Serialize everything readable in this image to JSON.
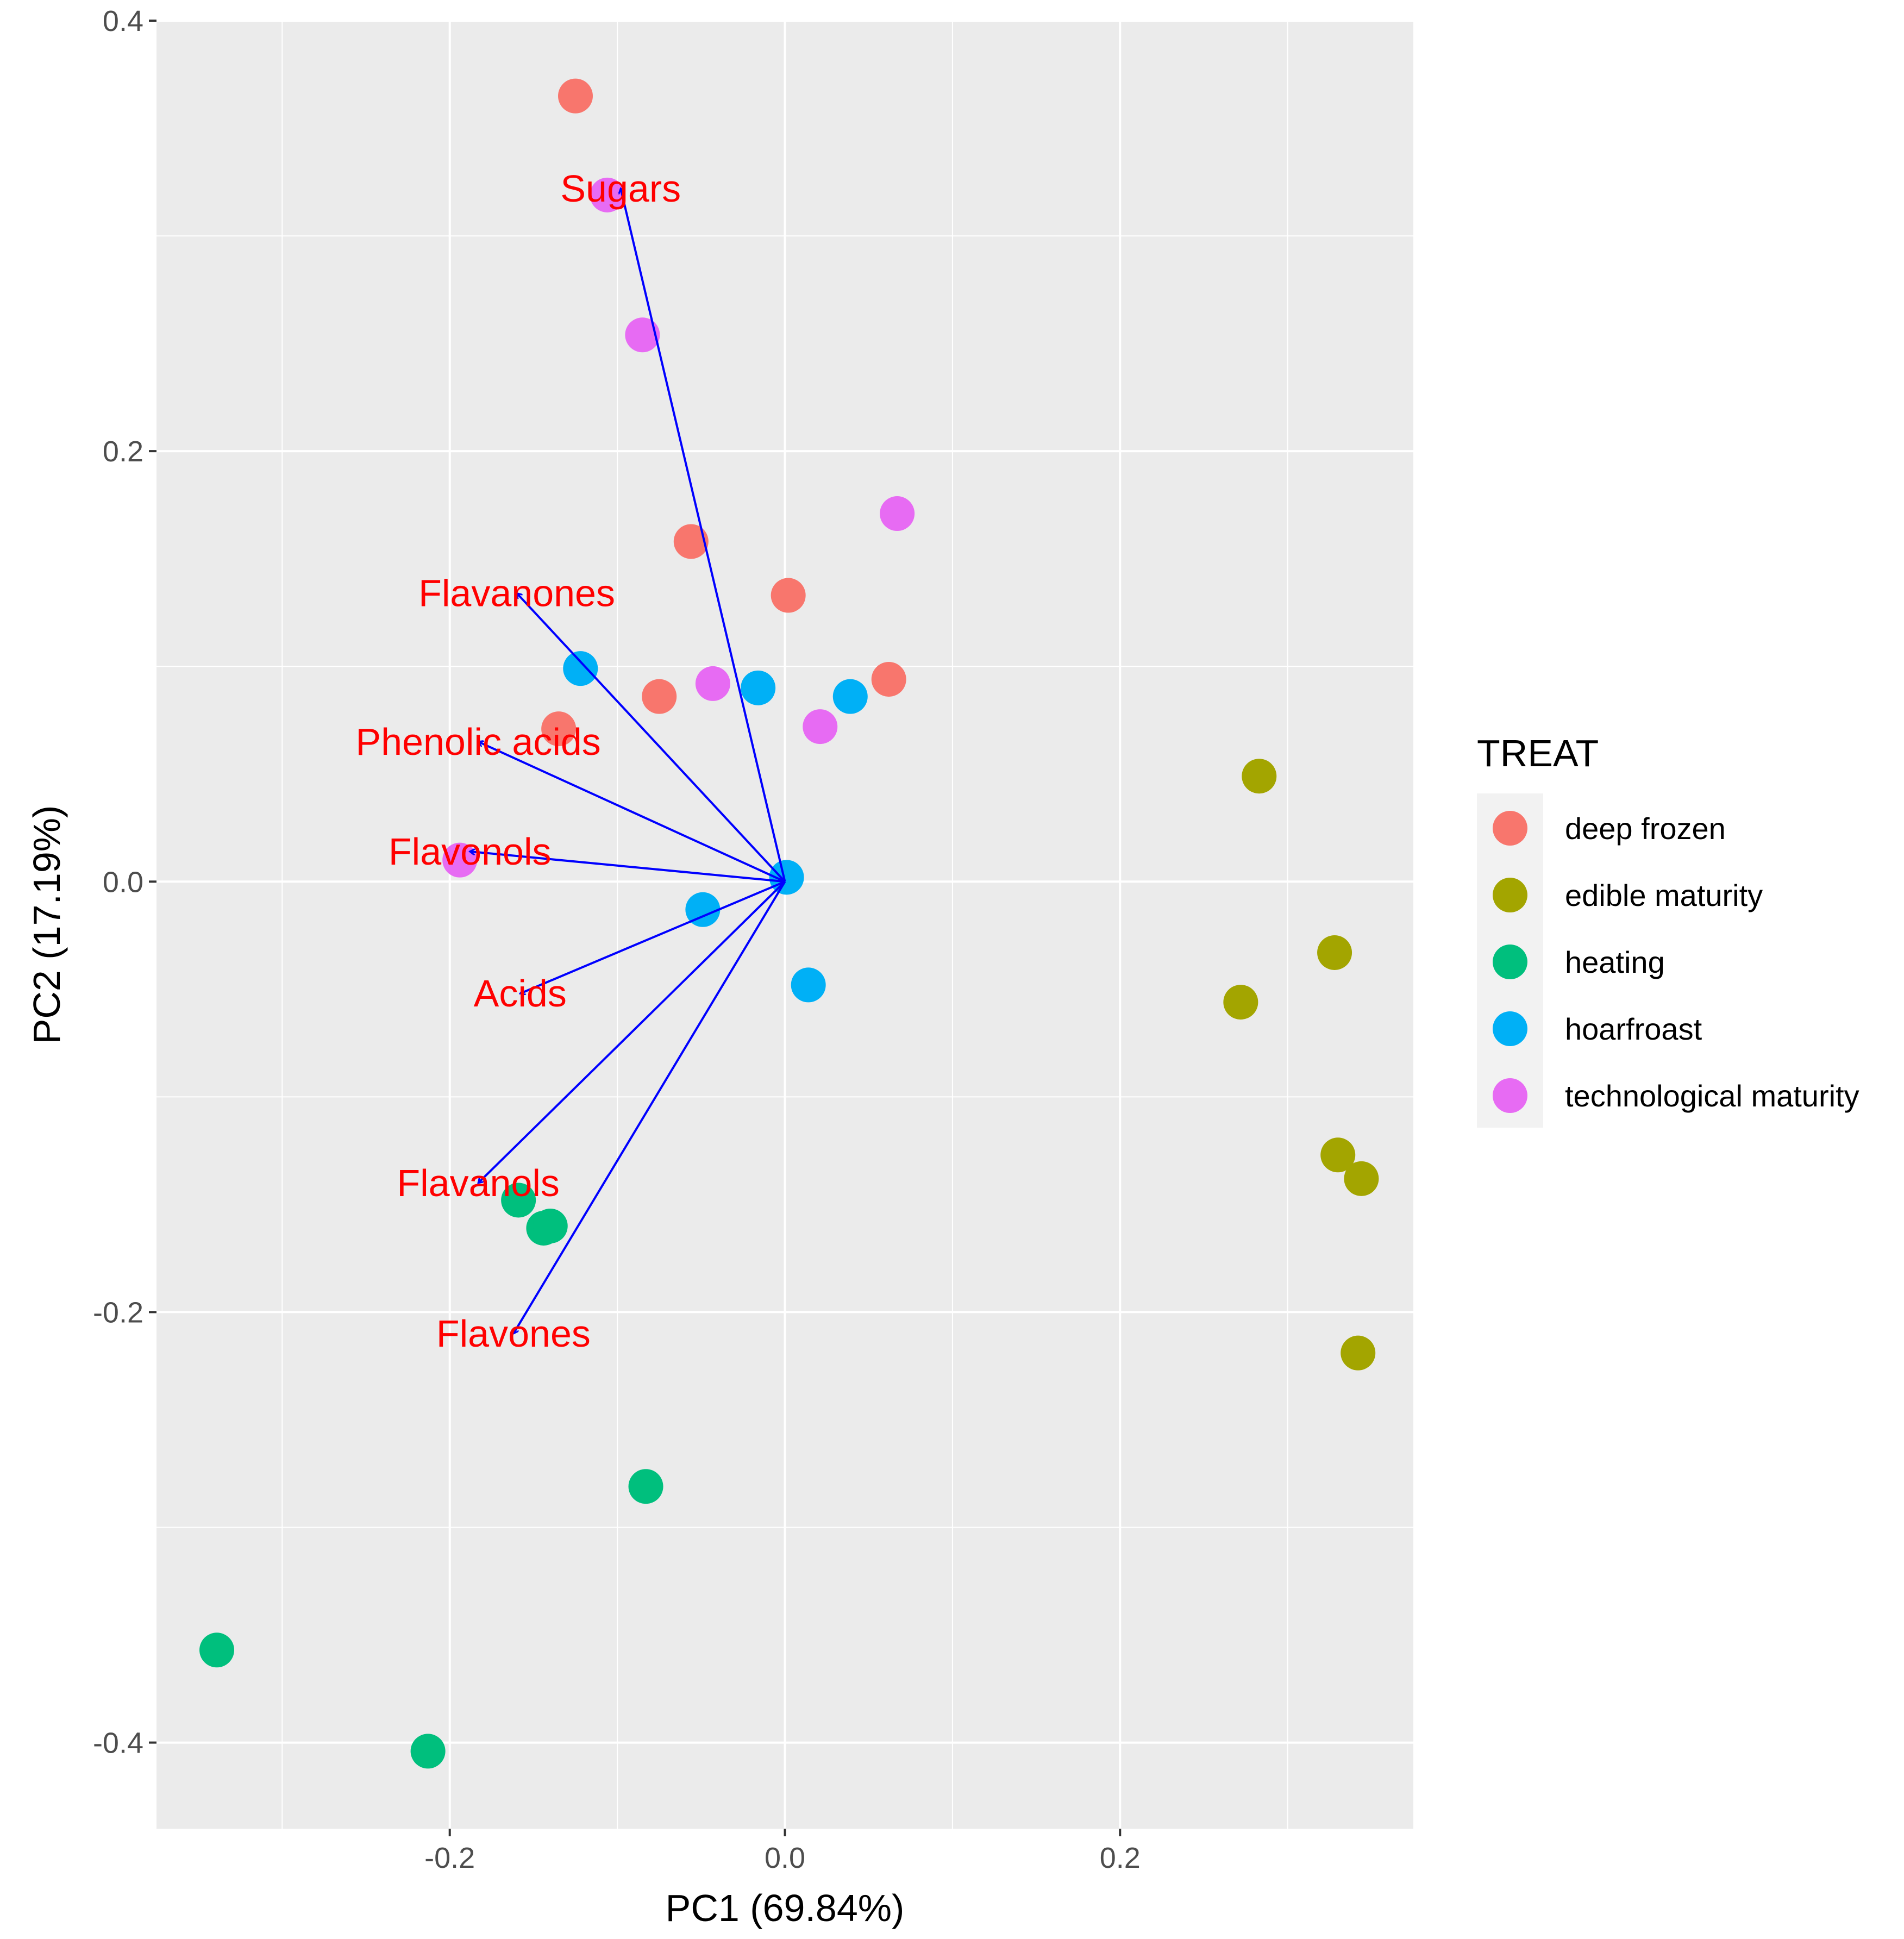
{
  "chart_data": {
    "type": "scatter",
    "subtype": "pca-biplot",
    "title": "",
    "xlabel": "PC1 (69.84%)",
    "ylabel": "PC2 (17.19%)",
    "xlim": [
      -0.375,
      0.375
    ],
    "ylim": [
      -0.44,
      0.4
    ],
    "x_ticks": [
      -0.2,
      0.0,
      0.2
    ],
    "x_tick_labels": [
      "-0.2",
      "0.0",
      "0.2"
    ],
    "y_ticks": [
      0.4,
      0.2,
      0.0,
      -0.2,
      -0.4
    ],
    "y_tick_labels": [
      "0.4",
      "0.2",
      "0.0",
      "-0.2",
      "-0.4"
    ],
    "grid": true,
    "legend": {
      "title": "TREAT",
      "position": "right",
      "entries": [
        "deep frozen",
        "edible maturity",
        "heating",
        "hoarfroast",
        "technological maturity"
      ]
    },
    "series": [
      {
        "name": "deep frozen",
        "color": "#F8766D",
        "points": [
          [
            -0.125,
            0.365
          ],
          [
            -0.056,
            0.158
          ],
          [
            0.002,
            0.133
          ],
          [
            -0.075,
            0.086
          ],
          [
            0.062,
            0.094
          ],
          [
            -0.135,
            0.071
          ]
        ]
      },
      {
        "name": "edible maturity",
        "color": "#A3A500",
        "points": [
          [
            0.283,
            0.049
          ],
          [
            0.328,
            -0.033
          ],
          [
            0.272,
            -0.056
          ],
          [
            0.33,
            -0.127
          ],
          [
            0.344,
            -0.138
          ],
          [
            0.342,
            -0.219
          ]
        ]
      },
      {
        "name": "heating",
        "color": "#00BF7D",
        "points": [
          [
            -0.159,
            -0.148
          ],
          [
            -0.144,
            -0.161
          ],
          [
            -0.14,
            -0.16
          ],
          [
            -0.083,
            -0.281
          ],
          [
            -0.339,
            -0.357
          ],
          [
            -0.213,
            -0.404
          ]
        ]
      },
      {
        "name": "hoarfroast",
        "color": "#00B0F6",
        "points": [
          [
            -0.122,
            0.099
          ],
          [
            -0.016,
            0.09
          ],
          [
            0.039,
            0.086
          ],
          [
            0.001,
            0.002
          ],
          [
            -0.049,
            -0.013
          ],
          [
            0.014,
            -0.048
          ]
        ]
      },
      {
        "name": "technological maturity",
        "color": "#E76BF3",
        "points": [
          [
            -0.106,
            0.319
          ],
          [
            -0.085,
            0.254
          ],
          [
            0.067,
            0.171
          ],
          [
            -0.043,
            0.092
          ],
          [
            0.021,
            0.072
          ],
          [
            -0.194,
            0.01
          ]
        ]
      }
    ],
    "loadings": [
      {
        "label": "Sugars",
        "x": -0.098,
        "y": 0.322
      },
      {
        "label": "Flavanones",
        "x": -0.16,
        "y": 0.134
      },
      {
        "label": "Phenolic acids",
        "x": -0.183,
        "y": 0.065
      },
      {
        "label": "Flavonols",
        "x": -0.188,
        "y": 0.014
      },
      {
        "label": "Acids",
        "x": -0.158,
        "y": -0.052
      },
      {
        "label": "Flavanols",
        "x": -0.183,
        "y": -0.14
      },
      {
        "label": "Flavones",
        "x": -0.162,
        "y": -0.21
      }
    ],
    "arrow_color": "#0000FF",
    "loading_label_color": "#FF0000",
    "panel_background": "#EBEBEB",
    "grid_color": "#FFFFFF"
  }
}
